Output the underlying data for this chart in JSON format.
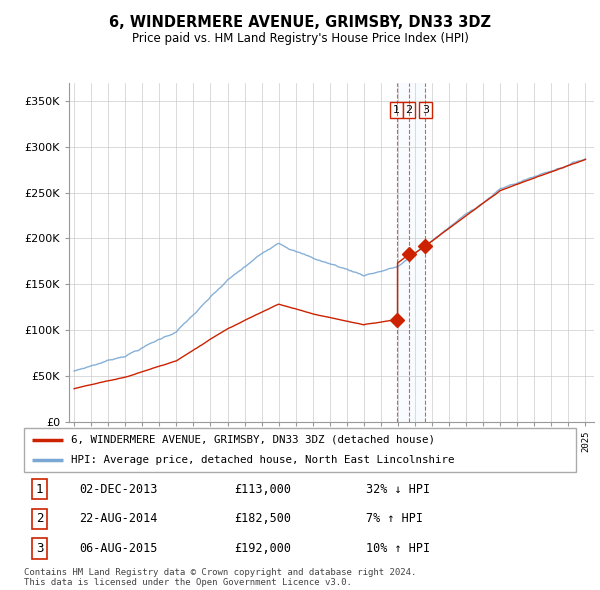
{
  "title": "6, WINDERMERE AVENUE, GRIMSBY, DN33 3DZ",
  "subtitle": "Price paid vs. HM Land Registry's House Price Index (HPI)",
  "legend_line1": "6, WINDERMERE AVENUE, GRIMSBY, DN33 3DZ (detached house)",
  "legend_line2": "HPI: Average price, detached house, North East Lincolnshire",
  "transactions": [
    {
      "label": "1",
      "date": "02-DEC-2013",
      "price": 113000,
      "hpi_note": "32% ↓ HPI",
      "year": 2013.92
    },
    {
      "label": "2",
      "date": "22-AUG-2014",
      "price": 182500,
      "hpi_note": "7% ↑ HPI",
      "year": 2014.64
    },
    {
      "label": "3",
      "date": "06-AUG-2015",
      "price": 192000,
      "hpi_note": "10% ↑ HPI",
      "year": 2015.6
    }
  ],
  "footer": "Contains HM Land Registry data © Crown copyright and database right 2024.\nThis data is licensed under the Open Government Licence v3.0.",
  "hpi_color": "#7aa8d4",
  "price_color": "#cc2200",
  "vline_color": "#cc2200",
  "shade_color": "#ddeeff",
  "background": "#ffffff",
  "ylim": [
    0,
    370000
  ],
  "yticks": [
    0,
    50000,
    100000,
    150000,
    200000,
    250000,
    300000,
    350000
  ],
  "xmin": 1994.7,
  "xmax": 2025.5
}
